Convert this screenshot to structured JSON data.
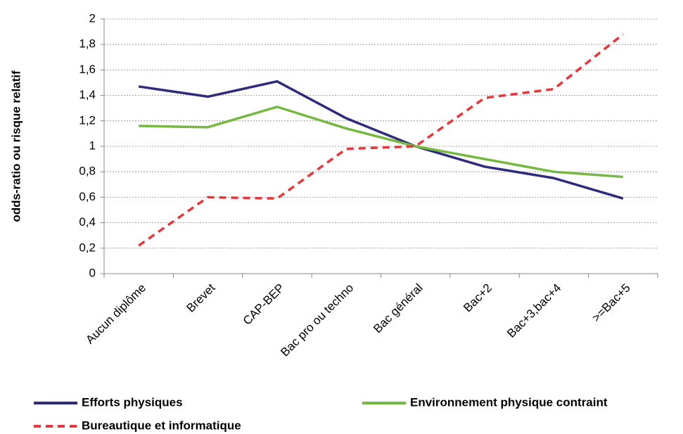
{
  "chart_data": {
    "type": "line",
    "y_label": "odds-ratio ou risque relatif",
    "categories": [
      "Aucun diplôme",
      "Brevet",
      "CAP-BEP",
      "Bac pro ou techno",
      "Bac général",
      "Bac+2",
      "Bac+3,bac+4",
      ">=Bac+5"
    ],
    "series": [
      {
        "name": "Efforts physiques",
        "color": "#2e2a7c",
        "values": [
          1.47,
          1.39,
          1.51,
          1.22,
          1.0,
          0.84,
          0.75,
          0.59
        ]
      },
      {
        "name": "Environnement physique contraint",
        "color": "#77b843",
        "values": [
          1.16,
          1.15,
          1.31,
          1.14,
          1.0,
          0.9,
          0.8,
          0.76
        ]
      },
      {
        "name": "Bureautique et informatique",
        "color": "#e8373a",
        "dashed": true,
        "values": [
          0.22,
          0.6,
          0.59,
          0.98,
          1.0,
          1.38,
          1.45,
          1.88
        ]
      }
    ],
    "ylim": [
      0,
      2
    ],
    "yticks": [
      0,
      {
        "value": 0.2,
        "label": "0,2"
      },
      {
        "value": 0.4,
        "label": "0,4"
      },
      {
        "value": 0.6,
        "label": "0,6"
      },
      {
        "value": 0.8,
        "label": "0,8"
      },
      1,
      {
        "value": 1.2,
        "label": "1,2"
      },
      {
        "value": 1.4,
        "label": "1,4"
      },
      {
        "value": 1.6,
        "label": "1,6"
      },
      {
        "value": 1.8,
        "label": "1,8"
      },
      2
    ],
    "grid": true
  }
}
